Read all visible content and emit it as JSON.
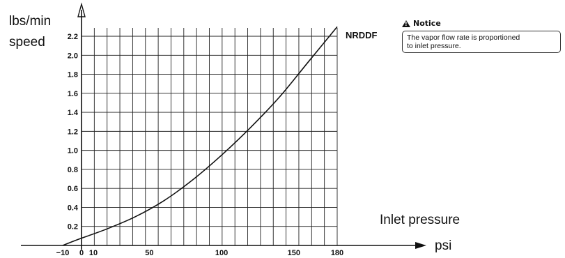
{
  "chart_data": {
    "type": "line",
    "y_title_line1": "lbs/min",
    "y_title_line2": "speed",
    "x_title": "Inlet  pressure",
    "x_unit": "psi",
    "x_ticks": [
      -10,
      0,
      10,
      50,
      100,
      150,
      180
    ],
    "y_ticks": [
      0.2,
      0.4,
      0.6,
      0.8,
      1.0,
      1.2,
      1.4,
      1.6,
      1.8,
      2.0,
      2.2
    ],
    "y_tick_labels": [
      "0.2",
      "0.4",
      "0.6",
      "0.8",
      "1.0",
      "1.2",
      "1.4",
      "1.6",
      "1.8",
      "2.0",
      "2.2"
    ],
    "xlim": [
      -10,
      180
    ],
    "ylim": [
      0,
      2.2
    ],
    "grid": true,
    "series": [
      {
        "name": "NRDDF",
        "x": [
          -10,
          0,
          20,
          40,
          60,
          80,
          100,
          120,
          140,
          160,
          180
        ],
        "y": [
          0.0,
          0.06,
          0.17,
          0.3,
          0.47,
          0.69,
          0.95,
          1.24,
          1.56,
          1.93,
          2.3
        ]
      }
    ],
    "color": "#111111"
  },
  "notice": {
    "title": "Notice",
    "icon": "warning-triangle-icon",
    "text_line1": "The vapor flow rate is proportioned",
    "text_line2": "to inlet pressure."
  }
}
